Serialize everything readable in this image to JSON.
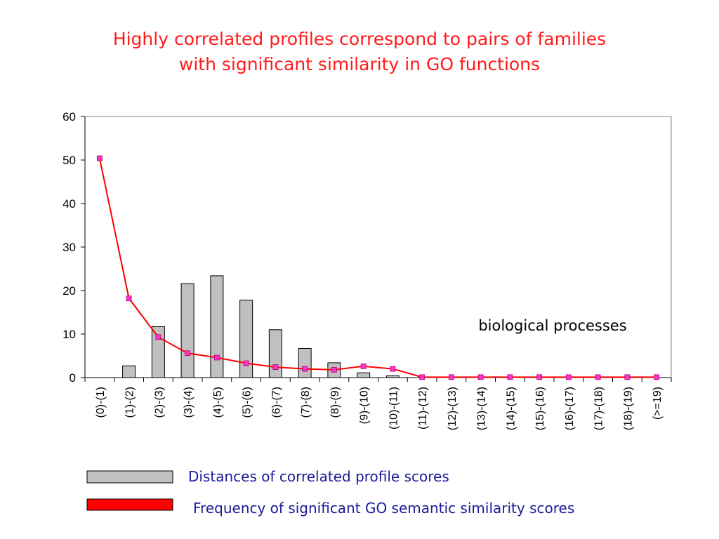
{
  "slide": {
    "title_line1": "Highly correlated profiles correspond to pairs of families",
    "title_line2": "with significant similarity in GO functions"
  },
  "colors": {
    "title": "#ff1a1a",
    "bar_fill": "#c0c0c0",
    "line": "#ff0000",
    "marker": "#ff33cc",
    "legend_text": "#1a1a99"
  },
  "chart_data": {
    "type": "bar",
    "categories": [
      "(0)-(1)",
      "(1)-(2)",
      "(2)-(3)",
      "(3)-(4)",
      "(4)-(5)",
      "(5)-(6)",
      "(6)-(7)",
      "(7)-(8)",
      "(8)-(9)",
      "(9)-(10)",
      "(10)-(11)",
      "(11)-(12)",
      "(12)-(13)",
      "(13)-(14)",
      "(14)-(15)",
      "(15)-(16)",
      "(16)-(17)",
      "(17)-(18)",
      "(18)-(19)",
      "(>=19)"
    ],
    "series": [
      {
        "name": "Distances of correlated profile scores",
        "type": "bar",
        "values": [
          0,
          2.7,
          11.7,
          21.6,
          23.4,
          17.8,
          11.0,
          6.7,
          3.4,
          1.1,
          0.4,
          0,
          0,
          0,
          0,
          0,
          0,
          0,
          0,
          0
        ]
      },
      {
        "name": "Frequency of significant GO semantic similarity scores",
        "type": "line",
        "values": [
          50.4,
          18.2,
          9.3,
          5.6,
          4.6,
          3.3,
          2.4,
          2.0,
          1.8,
          2.6,
          2.0,
          0.1,
          0.1,
          0.1,
          0.1,
          0.1,
          0.1,
          0.1,
          0.1,
          0.1
        ]
      }
    ],
    "yticks": [
      "0",
      "10",
      "20",
      "30",
      "40",
      "50",
      "60"
    ],
    "ylim": [
      0,
      60
    ],
    "annotation": "biological processes",
    "legend_position": "bottom"
  }
}
